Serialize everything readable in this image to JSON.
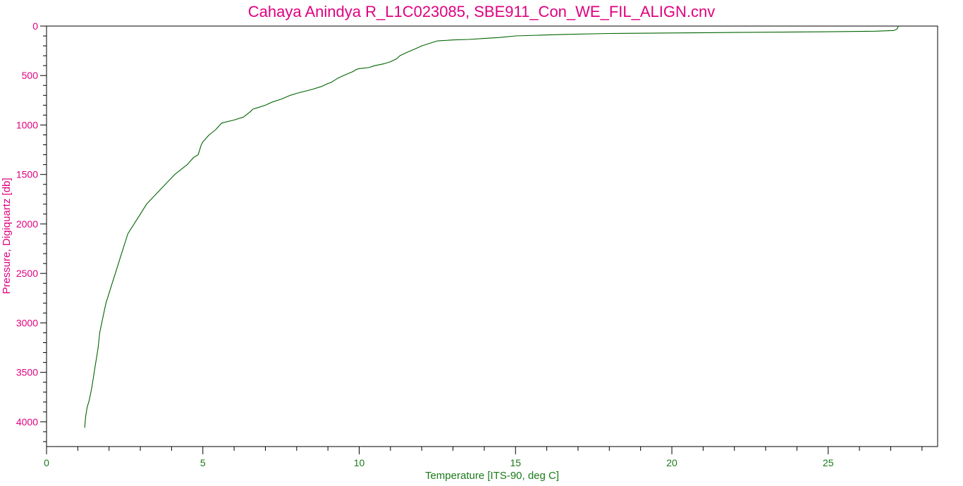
{
  "chart_data": {
    "type": "line",
    "title": "Cahaya Anindya R_L1C023085, SBE911_Con_WE_FIL_ALIGN.cnv",
    "xlabel": "Temperature [ITS-90, deg C]",
    "ylabel": "Pressure, Digiquartz [db]",
    "xlim": [
      0,
      28.5
    ],
    "ylim": [
      0,
      4250
    ],
    "y_inverted": true,
    "x_ticks": [
      0,
      5,
      10,
      15,
      20,
      25
    ],
    "y_ticks": [
      0,
      500,
      1000,
      1500,
      2000,
      2500,
      3000,
      3500,
      4000
    ],
    "x_minor_step": 1,
    "y_minor_step": 100,
    "grid": false,
    "colors": {
      "title": "#e0007f",
      "y_axis": "#e0007f",
      "x_axis": "#1a7a1a",
      "series": "#006400",
      "frame": "#000000"
    },
    "series": [
      {
        "x": [
          27.25,
          27.2,
          27.1,
          26.5,
          25.0,
          22.0,
          20.0,
          18.0,
          16.5,
          15.0,
          14.5,
          14.0,
          13.5,
          13.0,
          12.5,
          12.3,
          12.0,
          11.8,
          11.5,
          11.3,
          11.2,
          11.0,
          10.8,
          10.5,
          10.3,
          10.0,
          9.9,
          9.8,
          9.5,
          9.3,
          9.2,
          9.1,
          9.0,
          8.8,
          8.5,
          8.0,
          7.8,
          7.5,
          7.2,
          7.0,
          6.8,
          6.6,
          6.5,
          6.3,
          6.0,
          5.6,
          5.4,
          5.2,
          5.0,
          4.95,
          4.85,
          4.7,
          4.5,
          4.3,
          4.1,
          3.8,
          3.5,
          3.2,
          3.0,
          2.8,
          2.6,
          2.5,
          2.4,
          2.3,
          2.2,
          2.1,
          2.0,
          1.9,
          1.8,
          1.7,
          1.65,
          1.6,
          1.55,
          1.5,
          1.45,
          1.4,
          1.35,
          1.3,
          1.25,
          1.22
        ],
        "y": [
          0,
          30,
          45,
          52,
          58,
          65,
          70,
          75,
          85,
          100,
          115,
          125,
          135,
          140,
          150,
          170,
          200,
          230,
          270,
          300,
          330,
          360,
          380,
          400,
          420,
          430,
          440,
          460,
          500,
          530,
          550,
          570,
          580,
          610,
          640,
          680,
          700,
          740,
          770,
          800,
          820,
          840,
          870,
          920,
          950,
          980,
          1050,
          1100,
          1170,
          1200,
          1300,
          1330,
          1400,
          1450,
          1500,
          1600,
          1700,
          1800,
          1900,
          2000,
          2100,
          2200,
          2300,
          2400,
          2500,
          2600,
          2700,
          2800,
          2950,
          3100,
          3250,
          3350,
          3450,
          3550,
          3650,
          3730,
          3800,
          3850,
          3950,
          4060
        ]
      }
    ]
  }
}
